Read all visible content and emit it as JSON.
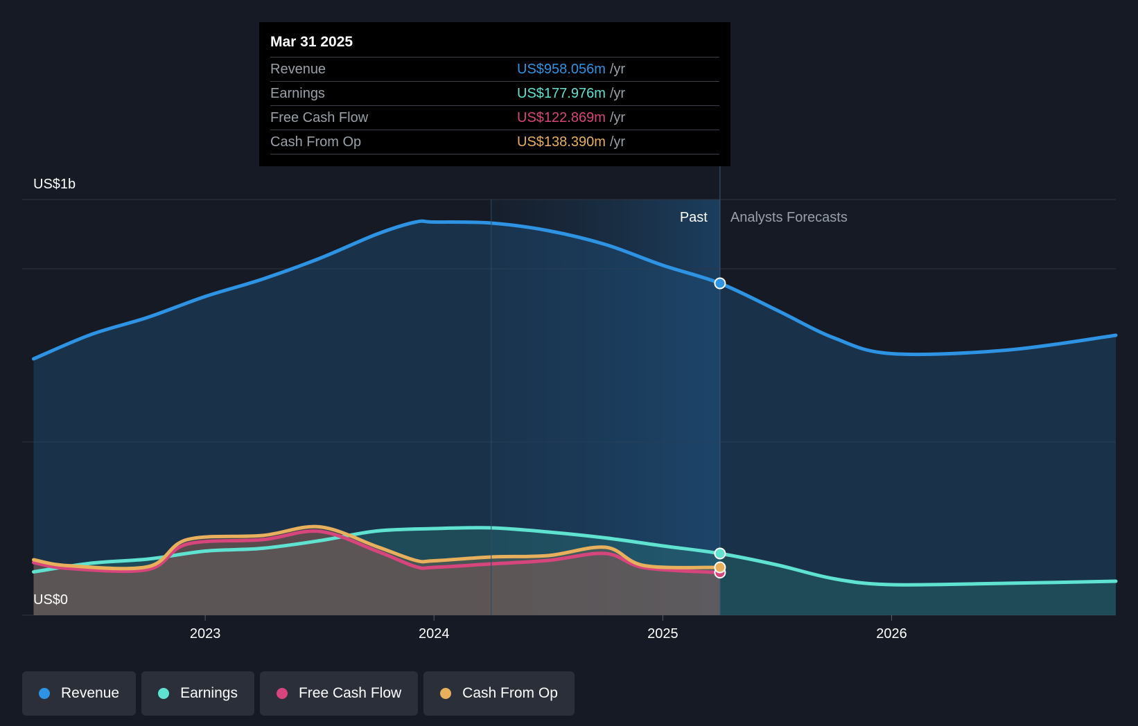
{
  "tooltip": {
    "date": "Mar 31 2025",
    "rows": [
      {
        "label": "Revenue",
        "value": "US$958.056m",
        "unit": "/yr",
        "color": "#2e93e3"
      },
      {
        "label": "Earnings",
        "value": "US$177.976m",
        "unit": "/yr",
        "color": "#5fe3d0"
      },
      {
        "label": "Free Cash Flow",
        "value": "US$122.869m",
        "unit": "/yr",
        "color": "#d6457c"
      },
      {
        "label": "Cash From Op",
        "value": "US$138.390m",
        "unit": "/yr",
        "color": "#e8b05c"
      }
    ]
  },
  "legend": [
    {
      "label": "Revenue",
      "color": "#2e93e3"
    },
    {
      "label": "Earnings",
      "color": "#5fe3d0"
    },
    {
      "label": "Free Cash Flow",
      "color": "#d6457c"
    },
    {
      "label": "Cash From Op",
      "color": "#e8b05c"
    }
  ],
  "chart_data": {
    "type": "line",
    "title": "",
    "y_top_label": "US$1b",
    "y_bottom_label": "US$0",
    "past_label": "Past",
    "forecast_label": "Analysts Forecasts",
    "ylim": [
      0,
      1200
    ],
    "xlim": [
      2022.2,
      2026.98
    ],
    "x_ticks": [
      2023,
      2024,
      2025,
      2026
    ],
    "x_tick_labels": [
      "2023",
      "2024",
      "2025",
      "2026"
    ],
    "y_gridlines": [
      0,
      500,
      1000,
      1200
    ],
    "past_end": 2025.25,
    "shade_start": 2024.25,
    "series": [
      {
        "name": "Revenue",
        "color": "#2e93e3",
        "points": [
          [
            2022.25,
            740
          ],
          [
            2022.5,
            810
          ],
          [
            2022.75,
            860
          ],
          [
            2023.0,
            920
          ],
          [
            2023.25,
            970
          ],
          [
            2023.5,
            1030
          ],
          [
            2023.75,
            1100
          ],
          [
            2023.92,
            1135
          ],
          [
            2024.0,
            1135
          ],
          [
            2024.25,
            1132
          ],
          [
            2024.5,
            1110
          ],
          [
            2024.75,
            1070
          ],
          [
            2025.0,
            1010
          ],
          [
            2025.25,
            958
          ],
          [
            2025.5,
            880
          ],
          [
            2025.75,
            800
          ],
          [
            2026.0,
            755
          ],
          [
            2026.5,
            765
          ],
          [
            2026.98,
            808
          ]
        ]
      },
      {
        "name": "Earnings",
        "color": "#5fe3d0",
        "points": [
          [
            2022.25,
            125
          ],
          [
            2022.5,
            150
          ],
          [
            2022.75,
            162
          ],
          [
            2023.0,
            185
          ],
          [
            2023.25,
            193
          ],
          [
            2023.5,
            215
          ],
          [
            2023.75,
            243
          ],
          [
            2024.0,
            250
          ],
          [
            2024.25,
            252
          ],
          [
            2024.5,
            240
          ],
          [
            2024.75,
            223
          ],
          [
            2025.0,
            200
          ],
          [
            2025.25,
            178
          ],
          [
            2025.5,
            145
          ],
          [
            2025.75,
            105
          ],
          [
            2026.0,
            88
          ],
          [
            2026.5,
            92
          ],
          [
            2026.98,
            98
          ]
        ]
      },
      {
        "name": "Free Cash Flow",
        "color": "#d6457c",
        "points": [
          [
            2022.25,
            152
          ],
          [
            2022.4,
            135
          ],
          [
            2022.75,
            132
          ],
          [
            2022.92,
            205
          ],
          [
            2023.25,
            218
          ],
          [
            2023.5,
            242
          ],
          [
            2023.75,
            185
          ],
          [
            2023.92,
            140
          ],
          [
            2024.0,
            138
          ],
          [
            2024.25,
            148
          ],
          [
            2024.5,
            158
          ],
          [
            2024.75,
            178
          ],
          [
            2024.92,
            137
          ],
          [
            2025.25,
            123
          ]
        ]
      },
      {
        "name": "Cash From Op",
        "color": "#e8b05c",
        "points": [
          [
            2022.25,
            160
          ],
          [
            2022.4,
            143
          ],
          [
            2022.75,
            140
          ],
          [
            2022.92,
            218
          ],
          [
            2023.25,
            230
          ],
          [
            2023.5,
            255
          ],
          [
            2023.75,
            198
          ],
          [
            2023.92,
            158
          ],
          [
            2024.0,
            157
          ],
          [
            2024.25,
            168
          ],
          [
            2024.5,
            172
          ],
          [
            2024.75,
            196
          ],
          [
            2024.92,
            143
          ],
          [
            2025.25,
            138
          ]
        ]
      }
    ]
  }
}
